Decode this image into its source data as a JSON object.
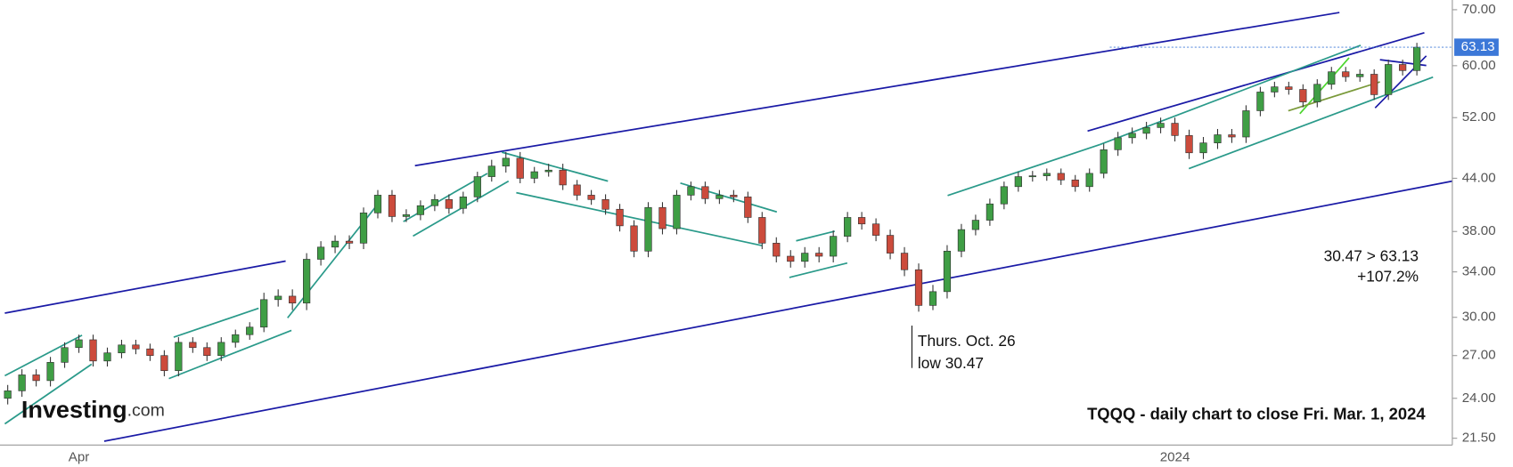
{
  "chart_data": {
    "type": "candlestick",
    "title": "TQQQ - daily chart to close Fri. Mar. 1, 2024",
    "logo": {
      "brand": "Investing",
      "suffix": ".com"
    },
    "annotations": {
      "low_date": "Thurs. Oct. 26",
      "low_text": "low 30.47",
      "change_text": "30.47 > 63.13",
      "change_pct": "+107.2%"
    },
    "log_scale": true,
    "grid": false,
    "up_color": "#3f9e45",
    "down_color": "#cc4b3c",
    "last_price": 63.13,
    "last_price_color": "#3c78d8",
    "ylim": [
      21.1,
      71.9
    ],
    "yticks": [
      {
        "value": 21.5,
        "label": "21.50"
      },
      {
        "value": 24,
        "label": "24.00"
      },
      {
        "value": 27,
        "label": "27.00"
      },
      {
        "value": 30,
        "label": "30.00"
      },
      {
        "value": 34,
        "label": "34.00"
      },
      {
        "value": 38,
        "label": "38.00"
      },
      {
        "value": 44,
        "label": "44.00"
      },
      {
        "value": 52,
        "label": "52.00"
      },
      {
        "value": 60,
        "label": "60.00"
      },
      {
        "value": 70,
        "label": "70.00"
      }
    ],
    "categories": [
      null,
      null,
      null,
      null,
      null,
      "Apr",
      null,
      null,
      null,
      null,
      null,
      null,
      null,
      null,
      null,
      null,
      null,
      null,
      null,
      null,
      null,
      null,
      null,
      null,
      null,
      null,
      null,
      null,
      null,
      null,
      null,
      null,
      null,
      null,
      null,
      null,
      null,
      null,
      null,
      null,
      null,
      null,
      null,
      null,
      null,
      null,
      null,
      null,
      null,
      null,
      null,
      null,
      null,
      null,
      null,
      null,
      null,
      null,
      null,
      null,
      null,
      null,
      null,
      null,
      null,
      null,
      null,
      null,
      null,
      null,
      null,
      null,
      null,
      null,
      null,
      null,
      null,
      null,
      null,
      null,
      null,
      null,
      "2024",
      null,
      null,
      null,
      null,
      null,
      null,
      null,
      null,
      null,
      null,
      null,
      null,
      null,
      null,
      null,
      null,
      null
    ],
    "open": [
      24.0,
      24.5,
      25.6,
      25.2,
      26.5,
      27.6,
      28.2,
      26.6,
      27.2,
      27.8,
      27.5,
      27.0,
      25.9,
      28.0,
      27.6,
      27.0,
      28.0,
      28.6,
      29.2,
      31.5,
      31.8,
      31.2,
      35.2,
      36.4,
      37.0,
      36.8,
      40.0,
      42.0,
      39.6,
      39.8,
      40.8,
      41.5,
      40.5,
      41.8,
      44.2,
      45.5,
      46.5,
      44.0,
      44.8,
      45.0,
      43.2,
      42.0,
      41.5,
      40.4,
      38.6,
      36.0,
      40.6,
      38.3,
      42.0,
      43.0,
      41.6,
      42.0,
      41.8,
      39.5,
      36.8,
      35.5,
      35.0,
      35.8,
      35.5,
      37.5,
      39.5,
      38.8,
      37.6,
      35.8,
      34.2,
      31.0,
      32.2,
      36.0,
      38.2,
      39.2,
      41.0,
      43.0,
      44.2,
      44.3,
      44.6,
      43.8,
      43.0,
      44.6,
      47.6,
      49.2,
      49.8,
      50.6,
      51.2,
      49.5,
      47.2,
      48.5,
      49.6,
      49.3,
      53.0,
      55.8,
      56.6,
      56.2,
      54.3,
      57.0,
      59.0,
      58.2,
      58.6,
      55.4,
      60.2,
      59.2
    ],
    "high": [
      24.9,
      26.0,
      26.0,
      26.9,
      28.0,
      28.6,
      28.6,
      27.6,
      28.2,
      28.2,
      27.9,
      27.4,
      28.4,
      28.4,
      28.0,
      28.4,
      29.0,
      29.6,
      32.1,
      32.4,
      32.4,
      35.8,
      37.0,
      37.6,
      37.6,
      40.6,
      42.6,
      42.6,
      40.4,
      41.4,
      42.1,
      42.1,
      42.4,
      44.8,
      46.3,
      47.3,
      47.3,
      45.4,
      45.8,
      45.8,
      43.8,
      42.6,
      42.1,
      41.0,
      39.2,
      41.2,
      41.2,
      42.6,
      43.6,
      43.6,
      42.6,
      42.6,
      42.4,
      40.1,
      37.4,
      36.1,
      36.4,
      36.4,
      38.1,
      40.1,
      40.1,
      39.4,
      38.2,
      36.4,
      34.8,
      32.8,
      36.6,
      38.8,
      39.8,
      41.6,
      43.6,
      44.8,
      44.9,
      45.2,
      45.2,
      44.4,
      45.2,
      48.4,
      50.0,
      50.6,
      51.4,
      52.0,
      52.0,
      50.3,
      49.3,
      50.4,
      50.4,
      53.8,
      56.6,
      57.4,
      57.4,
      57.0,
      57.8,
      59.8,
      59.8,
      59.4,
      59.4,
      61.0,
      61.0,
      63.9
    ],
    "low": [
      23.6,
      24.1,
      24.8,
      24.8,
      26.1,
      27.2,
      26.2,
      26.2,
      26.8,
      27.1,
      26.6,
      25.5,
      25.5,
      27.2,
      26.6,
      26.6,
      27.6,
      28.2,
      28.8,
      30.9,
      30.6,
      30.6,
      34.6,
      35.8,
      36.2,
      36.2,
      39.4,
      39.0,
      39.0,
      39.2,
      40.2,
      39.9,
      39.9,
      41.2,
      43.6,
      44.7,
      43.4,
      43.4,
      44.2,
      42.6,
      41.4,
      40.9,
      39.8,
      38.0,
      35.4,
      35.4,
      37.7,
      37.7,
      41.4,
      41.0,
      41.0,
      41.2,
      38.9,
      36.2,
      34.9,
      34.4,
      34.4,
      34.9,
      34.9,
      36.9,
      38.2,
      37.0,
      35.2,
      33.6,
      30.47,
      30.6,
      31.6,
      35.4,
      37.6,
      38.6,
      40.4,
      42.4,
      43.6,
      43.7,
      43.2,
      42.4,
      42.4,
      44.0,
      46.8,
      48.4,
      49.0,
      49.8,
      48.7,
      46.4,
      46.4,
      47.7,
      48.5,
      48.5,
      52.2,
      55.0,
      55.4,
      53.5,
      53.5,
      56.2,
      57.4,
      57.4,
      54.6,
      54.6,
      58.4,
      58.4
    ],
    "close": [
      24.5,
      25.6,
      25.2,
      26.5,
      27.6,
      28.2,
      26.6,
      27.2,
      27.8,
      27.5,
      27.0,
      25.9,
      28.0,
      27.6,
      27.0,
      28.0,
      28.6,
      29.2,
      31.5,
      31.8,
      31.2,
      35.2,
      36.4,
      37.0,
      36.8,
      40.0,
      42.0,
      39.6,
      39.8,
      40.8,
      41.5,
      40.5,
      41.8,
      44.2,
      45.5,
      46.5,
      44.0,
      44.8,
      45.0,
      43.2,
      42.0,
      41.5,
      40.4,
      38.6,
      36.0,
      40.6,
      38.3,
      42.0,
      43.0,
      41.6,
      42.0,
      41.8,
      39.5,
      36.8,
      35.5,
      35.0,
      35.8,
      35.5,
      37.5,
      39.5,
      38.8,
      37.6,
      35.8,
      34.2,
      31.0,
      32.2,
      36.0,
      38.2,
      39.2,
      41.0,
      43.0,
      44.2,
      44.3,
      44.6,
      43.8,
      43.0,
      44.6,
      47.6,
      49.2,
      49.8,
      50.6,
      51.2,
      49.5,
      47.2,
      48.5,
      49.6,
      49.3,
      53.0,
      55.8,
      56.6,
      56.2,
      54.3,
      57.0,
      59.0,
      58.2,
      58.6,
      55.4,
      60.2,
      59.2,
      63.13
    ]
  }
}
